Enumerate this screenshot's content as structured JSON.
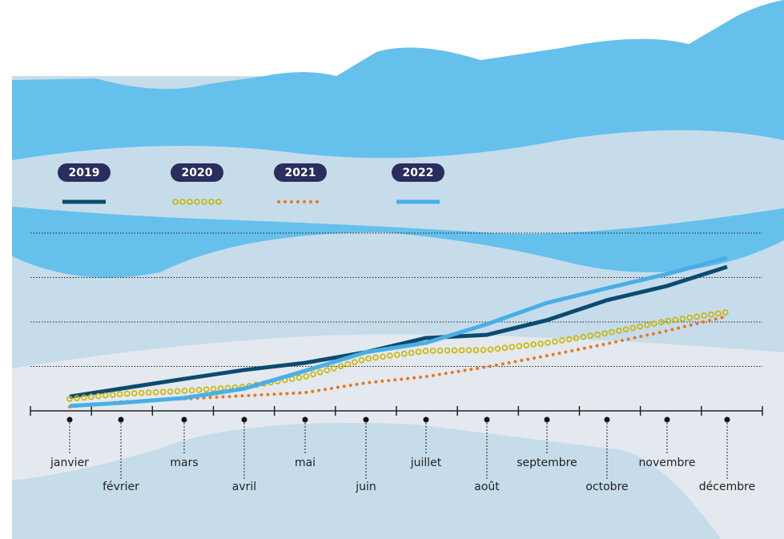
{
  "chart_data": {
    "type": "line",
    "categories": [
      "janvier",
      "février",
      "mars",
      "avril",
      "mai",
      "juin",
      "juillet",
      "août",
      "septembre",
      "octobre",
      "novembre",
      "décembre"
    ],
    "series": [
      {
        "name": "2019",
        "color": "#0d4a70",
        "style": "solid",
        "values": [
          0.32,
          0.5,
          0.72,
          0.92,
          1.08,
          1.32,
          1.64,
          1.71,
          2.04,
          2.49,
          2.81,
          3.24
        ]
      },
      {
        "name": "2020",
        "color": "#c8b400",
        "style": "circles",
        "values": [
          0.27,
          0.38,
          0.45,
          0.54,
          0.77,
          1.17,
          1.35,
          1.37,
          1.53,
          1.75,
          2.02,
          2.22
        ]
      },
      {
        "name": "2021",
        "color": "#e87722",
        "style": "dots",
        "values": [
          0.09,
          0.2,
          0.27,
          0.34,
          0.41,
          0.63,
          0.77,
          0.99,
          1.24,
          1.51,
          1.8,
          2.13
        ]
      },
      {
        "name": "2022",
        "color": "#4aaee6",
        "style": "solid",
        "values": [
          0.11,
          0.18,
          0.29,
          0.5,
          0.9,
          1.32,
          1.53,
          1.95,
          2.43,
          2.76,
          3.08,
          3.44
        ]
      }
    ],
    "ylim": [
      0,
      4
    ],
    "yticks": [
      1,
      2,
      3,
      4
    ],
    "grid": true
  }
}
